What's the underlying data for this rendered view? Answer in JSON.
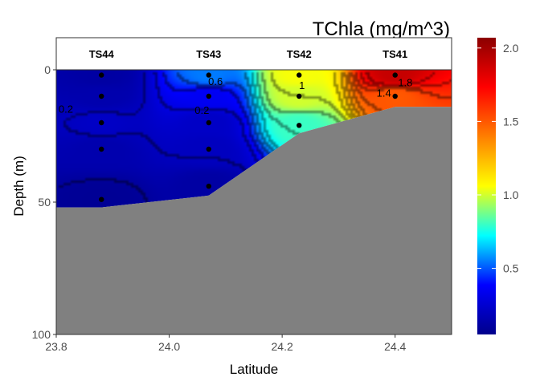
{
  "chart_data": {
    "type": "heatmap",
    "title": "TChla (mg/m^3)",
    "xlabel": "Latitude",
    "ylabel": "Depth (m)",
    "xlim": [
      23.8,
      24.5
    ],
    "ylim": [
      0,
      100
    ],
    "y_reversed": true,
    "x_ticks": [
      {
        "value": 23.8,
        "label": "23.8"
      },
      {
        "value": 24.0,
        "label": "24.0"
      },
      {
        "value": 24.2,
        "label": "24.2"
      },
      {
        "value": 24.4,
        "label": "24.4"
      }
    ],
    "y_ticks": [
      {
        "value": 0,
        "label": "0"
      },
      {
        "value": 50,
        "label": "50"
      },
      {
        "value": 100,
        "label": "100"
      }
    ],
    "colorbar": {
      "min": 0.05,
      "max": 2.07,
      "colors": [
        "#00008b",
        "#0000ff",
        "#00ffff",
        "#ffff00",
        "#ff7f00",
        "#ff0000",
        "#8b0000"
      ],
      "ticks": [
        {
          "value": 0.5,
          "label": "0.5"
        },
        {
          "value": 1.0,
          "label": "1.0"
        },
        {
          "value": 1.5,
          "label": "1.5"
        },
        {
          "value": 2.0,
          "label": "2.0"
        }
      ]
    },
    "stations": [
      {
        "name": "TS44",
        "lat": 23.88,
        "samples": [
          {
            "depth": 2,
            "value": 0.12
          },
          {
            "depth": 10,
            "value": 0.15
          },
          {
            "depth": 20,
            "value": 0.22
          },
          {
            "depth": 30,
            "value": 0.15
          },
          {
            "depth": 49,
            "value": 0.08
          }
        ]
      },
      {
        "name": "TS43",
        "lat": 24.07,
        "samples": [
          {
            "depth": 2,
            "value": 0.55
          },
          {
            "depth": 10,
            "value": 0.35
          },
          {
            "depth": 20,
            "value": 0.22
          },
          {
            "depth": 30,
            "value": 0.2
          },
          {
            "depth": 44,
            "value": 0.12
          }
        ]
      },
      {
        "name": "TS42",
        "lat": 24.23,
        "samples": [
          {
            "depth": 2,
            "value": 1.05
          },
          {
            "depth": 10,
            "value": 1.0
          },
          {
            "depth": 21,
            "value": 0.8
          }
        ]
      },
      {
        "name": "TS41",
        "lat": 24.4,
        "samples": [
          {
            "depth": 2,
            "value": 1.9
          },
          {
            "depth": 10,
            "value": 1.5
          }
        ]
      }
    ],
    "contour_labels": [
      {
        "text": "0.2",
        "lat": 23.817,
        "depth": 15
      },
      {
        "text": "0.6",
        "lat": 24.082,
        "depth": 4.5
      },
      {
        "text": "0.2",
        "lat": 24.058,
        "depth": 15.5
      },
      {
        "text": "1",
        "lat": 24.235,
        "depth": 6
      },
      {
        "text": "1.4",
        "lat": 24.38,
        "depth": 9
      },
      {
        "text": "1.8",
        "lat": 24.418,
        "depth": 5
      }
    ],
    "seafloor": [
      {
        "lat": 23.8,
        "depth": 52
      },
      {
        "lat": 23.88,
        "depth": 52
      },
      {
        "lat": 24.07,
        "depth": 47.5
      },
      {
        "lat": 24.23,
        "depth": 24
      },
      {
        "lat": 24.4,
        "depth": 14
      },
      {
        "lat": 24.5,
        "depth": 14
      }
    ]
  }
}
